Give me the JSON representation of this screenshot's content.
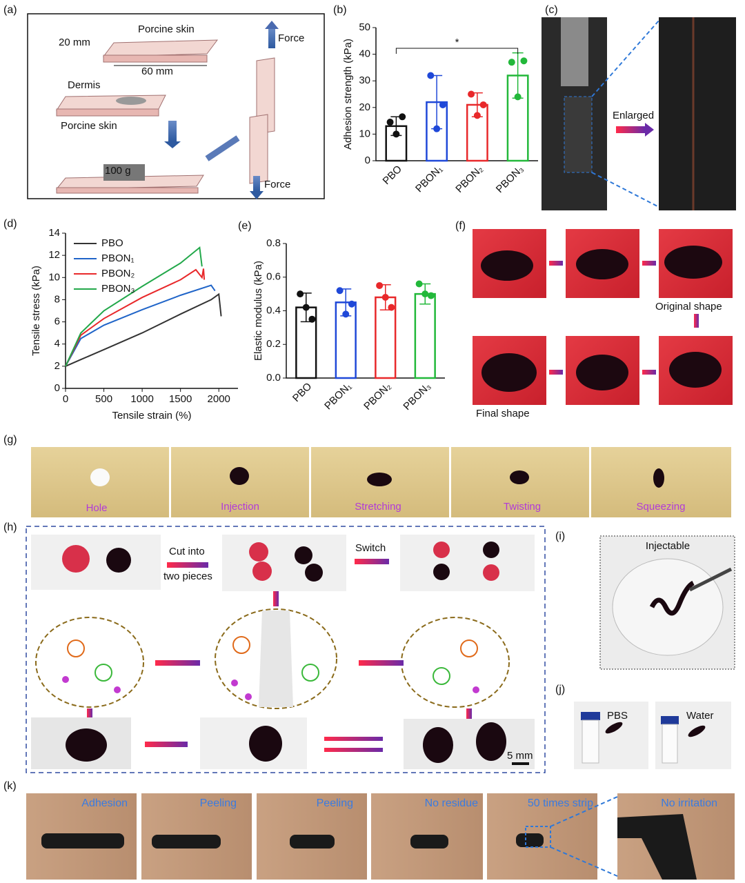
{
  "panel_labels": [
    "(a)",
    "(b)",
    "(c)",
    "(d)",
    "(e)",
    "(f)",
    "(g)",
    "(h)",
    "(i)",
    "(j)",
    "(k)"
  ],
  "panel_a": {
    "labels": [
      "20 mm",
      "Porcine skin",
      "60 mm",
      "Force",
      "Dermis",
      "Porcine skin",
      "100 g",
      "Force"
    ]
  },
  "panel_c": {
    "label": "Enlarged"
  },
  "panel_f": {
    "labels": [
      "Original shape",
      "Final shape"
    ]
  },
  "panel_g": {
    "captions": [
      "Hole",
      "Injection",
      "Stretching",
      "Twisting",
      "Squeezing"
    ]
  },
  "panel_h": {
    "labels": [
      "Cut into",
      "two pieces",
      "Switch",
      "5 mm"
    ]
  },
  "panel_i": {
    "label": "Injectable"
  },
  "panel_j": {
    "labels": [
      "PBS",
      "Water"
    ]
  },
  "panel_k": {
    "captions": [
      "Adhesion",
      "Peeling",
      "Peeling",
      "No residue",
      "50 times strip",
      "No irritation"
    ]
  },
  "chart_data": [
    {
      "type": "bar",
      "y_label": "Adhesion strength (kPa)",
      "annotation": "*",
      "categories": [
        "PBO",
        "PBON₁",
        "PBON₂",
        "PBON₃"
      ],
      "values": [
        13,
        22,
        21,
        32
      ],
      "errors": [
        3.5,
        10,
        4.5,
        8.5
      ],
      "points": [
        [
          14.5,
          10,
          16.5
        ],
        [
          32,
          12,
          21
        ],
        [
          25,
          17,
          21
        ],
        [
          37,
          24,
          37.5
        ]
      ],
      "colors": [
        "#111111",
        "#1f48d8",
        "#e8282a",
        "#22b83a"
      ],
      "ylim": [
        0,
        50
      ],
      "yticks": [
        0,
        10,
        20,
        30,
        40,
        50
      ]
    },
    {
      "type": "line",
      "x_label": "Tensile strain (%)",
      "y_label": "Tensile stress (kPa)",
      "series": [
        {
          "name": "PBO",
          "color": "#333333",
          "x": [
            0,
            200,
            500,
            1000,
            1500,
            1900,
            2000,
            2030
          ],
          "values": [
            2,
            2.6,
            3.5,
            5,
            6.7,
            8,
            8.5,
            6.5
          ]
        },
        {
          "name": "PBON₁",
          "color": "#1f64c8",
          "x": [
            0,
            200,
            500,
            1000,
            1500,
            1900,
            1950
          ],
          "values": [
            2,
            4.5,
            5.7,
            7.1,
            8.4,
            9.3,
            8.8
          ]
        },
        {
          "name": "PBON₂",
          "color": "#e8282a",
          "x": [
            0,
            200,
            500,
            1000,
            1500,
            1700,
            1780,
            1800,
            1810
          ],
          "values": [
            2,
            4.8,
            6.3,
            8.2,
            9.8,
            10.7,
            10,
            10.8,
            9.8
          ]
        },
        {
          "name": "PBON₃",
          "color": "#22a84a",
          "x": [
            0,
            200,
            500,
            1000,
            1500,
            1750,
            1780
          ],
          "values": [
            2,
            5,
            7,
            9.2,
            11.3,
            12.7,
            11
          ]
        }
      ],
      "xlim": [
        0,
        2250
      ],
      "xticks": [
        0,
        500,
        1000,
        1500,
        2000
      ],
      "ylim": [
        0,
        14
      ],
      "yticks": [
        0,
        2,
        4,
        6,
        8,
        10,
        12,
        14
      ]
    },
    {
      "type": "bar",
      "y_label": "Elastic modulus (kPa)",
      "categories": [
        "PBO",
        "PBON₁",
        "PBON₂",
        "PBON₃"
      ],
      "values": [
        0.42,
        0.45,
        0.48,
        0.5
      ],
      "errors": [
        0.085,
        0.08,
        0.075,
        0.06
      ],
      "points": [
        [
          0.5,
          0.42,
          0.35
        ],
        [
          0.52,
          0.38,
          0.44
        ],
        [
          0.55,
          0.48,
          0.42
        ],
        [
          0.56,
          0.5,
          0.49
        ]
      ],
      "colors": [
        "#111111",
        "#1f48d8",
        "#e8282a",
        "#22b83a"
      ],
      "ylim": [
        0,
        0.8
      ],
      "yticks": [
        {
          "value": 0,
          "label": "0.0"
        },
        0.2,
        0.4,
        0.6,
        0.8
      ]
    }
  ]
}
